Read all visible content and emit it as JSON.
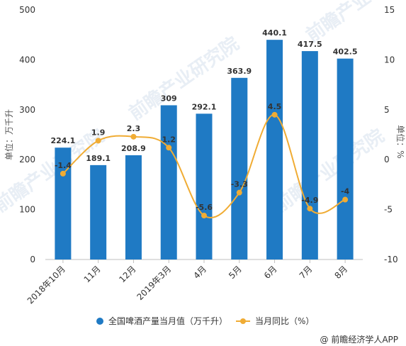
{
  "chart_data": {
    "type": "bar+line",
    "categories": [
      "2018年10月",
      "11月",
      "12月",
      "2019年3月",
      "4月",
      "5月",
      "6月",
      "7月",
      "8月"
    ],
    "series": [
      {
        "name": "全国啤酒产量当月值（万千升）",
        "type": "bar",
        "axis": "left",
        "values": [
          224.1,
          189.1,
          208.9,
          309,
          292.1,
          363.9,
          440.1,
          417.5,
          402.5
        ],
        "labels": [
          "224.1",
          "189.1",
          "208.9",
          "309",
          "292.1",
          "363.9",
          "440.1",
          "417.5",
          "402.5"
        ],
        "color": "#1f7ac4"
      },
      {
        "name": "当月同比（%）",
        "type": "line",
        "axis": "right",
        "values": [
          -1.4,
          1.9,
          2.3,
          1.2,
          -5.6,
          -3.3,
          4.5,
          -4.9,
          -4
        ],
        "labels": [
          "-1.4",
          "1.9",
          "2.3",
          "1.2",
          "-5.6",
          "-3.3",
          "4.5",
          "-4.9",
          "-4"
        ],
        "color": "#f0ac34"
      }
    ],
    "ylabel": "单位：万千升",
    "y2label": "单位：%",
    "ylim": [
      0,
      500
    ],
    "yticks": [
      0,
      100,
      200,
      300,
      400,
      500
    ],
    "y2lim": [
      -10,
      15
    ],
    "y2ticks": [
      -10,
      -5,
      0,
      5,
      10,
      15
    ],
    "grid": false,
    "legend": "bottom"
  },
  "credit": "@ 前瞻经济学人APP",
  "watermark": "前瞻产业研究院"
}
